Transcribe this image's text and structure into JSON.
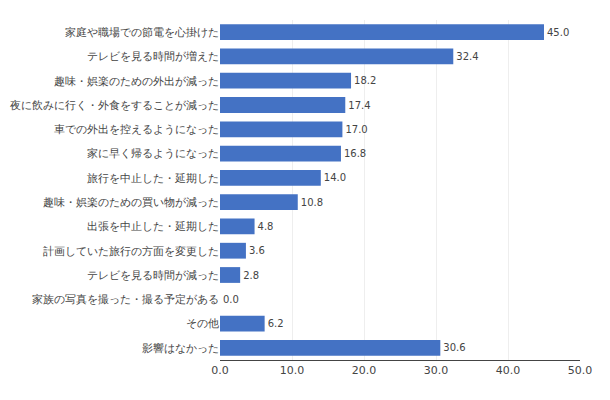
{
  "chart_data": {
    "type": "bar",
    "orientation": "horizontal",
    "categories": [
      "家庭や職場での節電を心掛けた",
      "テレビを見る時間が増えた",
      "趣味・娯楽のための外出が減った",
      "夜に飲みに行く・外食をすることが減った",
      "車での外出を控えるようになった",
      "家に早く帰るようになった",
      "旅行を中止した・延期した",
      "趣味・娯楽のための買い物が減った",
      "出張を中止した・延期した",
      "計画していた旅行の方面を変更した",
      "テレビを見る時間が減った",
      "家族の写真を撮った・撮る予定がある",
      "その他",
      "影響はなかった"
    ],
    "values": [
      45.0,
      32.4,
      18.2,
      17.4,
      17.0,
      16.8,
      14.0,
      10.8,
      4.8,
      3.6,
      2.8,
      0.0,
      6.2,
      30.6
    ],
    "value_labels": [
      "45.0",
      "32.4",
      "18.2",
      "17.4",
      "17.0",
      "16.8",
      "14.0",
      "10.8",
      "4.8",
      "3.6",
      "2.8",
      "0.0",
      "6.2",
      "30.6"
    ],
    "color": "#4472C4",
    "xlim": [
      0,
      50.0
    ],
    "xticks": [
      {
        "value": 0,
        "label": "0.0"
      },
      {
        "value": 10,
        "label": "10.0"
      },
      {
        "value": 20,
        "label": "20.0"
      },
      {
        "value": 30,
        "label": "30.0"
      },
      {
        "value": 40,
        "label": "40.0"
      },
      {
        "value": 50,
        "label": "50.0"
      }
    ],
    "grid": true,
    "data_labels": true
  }
}
